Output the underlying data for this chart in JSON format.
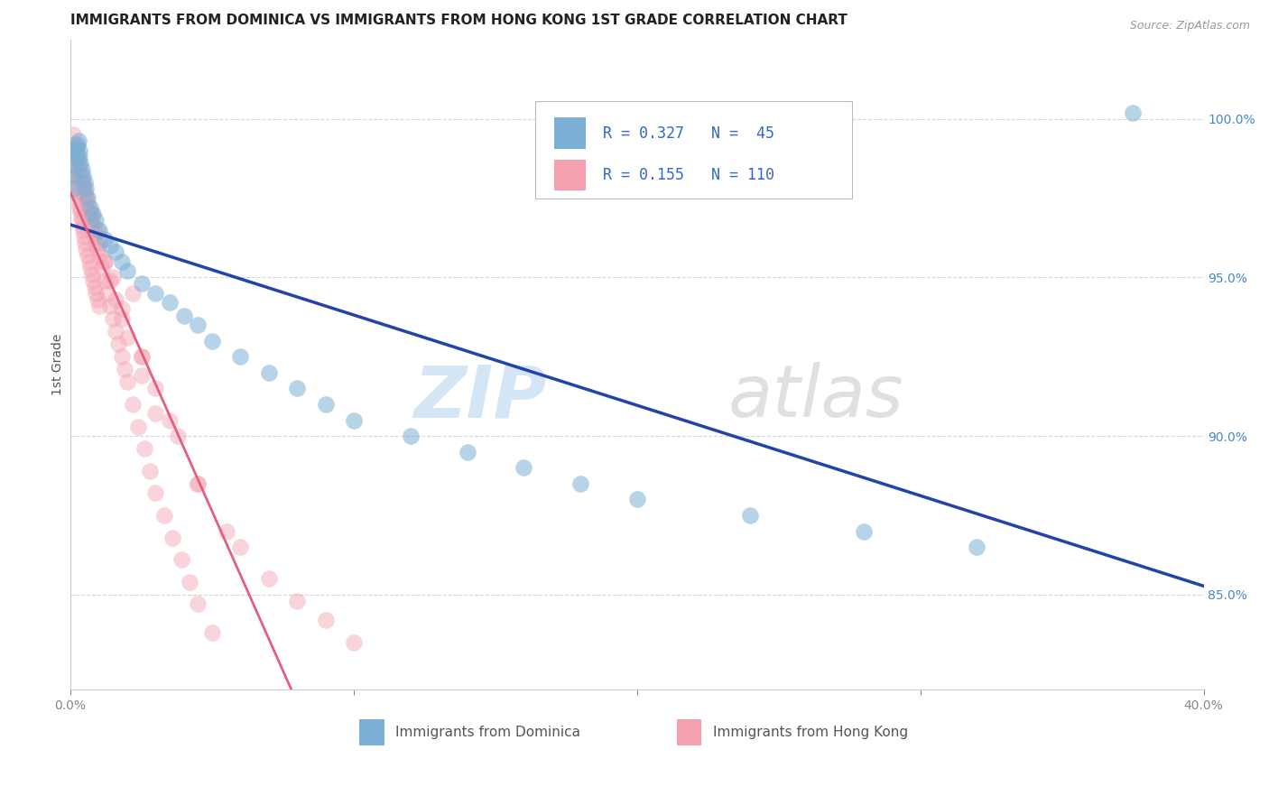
{
  "title": "IMMIGRANTS FROM DOMINICA VS IMMIGRANTS FROM HONG KONG 1ST GRADE CORRELATION CHART",
  "source_text": "Source: ZipAtlas.com",
  "ylabel": "1st Grade",
  "x_label_dominica": "Immigrants from Dominica",
  "x_label_hongkong": "Immigrants from Hong Kong",
  "xlim": [
    0.0,
    40.0
  ],
  "ylim": [
    82.0,
    102.5
  ],
  "y_ticks": [
    85.0,
    90.0,
    95.0,
    100.0
  ],
  "y_tick_labels": [
    "85.0%",
    "90.0%",
    "95.0%",
    "100.0%"
  ],
  "dominica_R": 0.327,
  "dominica_N": 45,
  "hongkong_R": 0.155,
  "hongkong_N": 110,
  "dominica_color": "#7BAFD4",
  "hongkong_color": "#F4A0B0",
  "dominica_line_color": "#2244AA",
  "hongkong_line_color": "#E06080",
  "background_color": "#FFFFFF",
  "grid_color": "#CCCCCC",
  "watermark_color": "#B8D4E8",
  "title_fontsize": 11,
  "dominica_x": [
    0.08,
    0.12,
    0.15,
    0.18,
    0.2,
    0.22,
    0.25,
    0.28,
    0.3,
    0.33,
    0.35,
    0.4,
    0.45,
    0.5,
    0.55,
    0.6,
    0.7,
    0.8,
    0.9,
    1.0,
    1.2,
    1.4,
    1.6,
    1.8,
    2.0,
    2.5,
    3.0,
    3.5,
    4.0,
    4.5,
    5.0,
    6.0,
    7.0,
    8.0,
    9.0,
    10.0,
    12.0,
    14.0,
    16.0,
    18.0,
    20.0,
    24.0,
    28.0,
    32.0,
    37.5
  ],
  "dominica_y": [
    97.8,
    98.2,
    98.5,
    98.8,
    99.0,
    99.1,
    99.2,
    99.3,
    99.0,
    98.8,
    98.6,
    98.4,
    98.2,
    98.0,
    97.8,
    97.5,
    97.2,
    97.0,
    96.8,
    96.5,
    96.2,
    96.0,
    95.8,
    95.5,
    95.2,
    94.8,
    94.5,
    94.2,
    93.8,
    93.5,
    93.0,
    92.5,
    92.0,
    91.5,
    91.0,
    90.5,
    90.0,
    89.5,
    89.0,
    88.5,
    88.0,
    87.5,
    87.0,
    86.5,
    100.2
  ],
  "hongkong_x": [
    0.05,
    0.08,
    0.1,
    0.12,
    0.14,
    0.16,
    0.18,
    0.2,
    0.22,
    0.25,
    0.28,
    0.3,
    0.33,
    0.35,
    0.38,
    0.4,
    0.43,
    0.45,
    0.48,
    0.5,
    0.55,
    0.6,
    0.65,
    0.7,
    0.75,
    0.8,
    0.85,
    0.9,
    0.95,
    1.0,
    0.1,
    0.15,
    0.2,
    0.25,
    0.3,
    0.35,
    0.4,
    0.45,
    0.5,
    0.55,
    0.6,
    0.65,
    0.7,
    0.75,
    0.8,
    0.85,
    0.9,
    0.95,
    1.0,
    1.1,
    1.2,
    1.3,
    1.4,
    1.5,
    1.6,
    1.7,
    1.8,
    1.9,
    2.0,
    2.2,
    2.4,
    2.6,
    2.8,
    3.0,
    3.3,
    3.6,
    3.9,
    4.2,
    4.5,
    5.0,
    0.2,
    0.3,
    0.4,
    0.5,
    0.6,
    0.7,
    0.8,
    0.9,
    1.0,
    1.2,
    1.4,
    1.6,
    1.8,
    2.0,
    2.5,
    3.0,
    0.35,
    0.55,
    0.75,
    0.95,
    1.5,
    2.5,
    3.5,
    4.5,
    5.5,
    6.0,
    7.0,
    8.0,
    9.0,
    10.0,
    1.2,
    1.8,
    2.5,
    3.0,
    3.8,
    4.5,
    0.25,
    0.45,
    0.65,
    2.2
  ],
  "hongkong_y": [
    99.2,
    99.0,
    98.8,
    98.7,
    98.5,
    98.3,
    98.2,
    98.0,
    97.9,
    97.7,
    97.6,
    97.4,
    97.2,
    97.1,
    96.9,
    96.8,
    96.6,
    96.5,
    96.3,
    96.1,
    95.9,
    95.7,
    95.5,
    95.3,
    95.1,
    94.9,
    94.7,
    94.5,
    94.3,
    94.1,
    99.5,
    99.2,
    99.0,
    98.8,
    98.5,
    98.3,
    98.1,
    97.9,
    97.7,
    97.5,
    97.3,
    97.1,
    96.9,
    96.7,
    96.5,
    96.3,
    96.1,
    95.9,
    95.7,
    95.3,
    94.9,
    94.5,
    94.1,
    93.7,
    93.3,
    92.9,
    92.5,
    92.1,
    91.7,
    91.0,
    90.3,
    89.6,
    88.9,
    88.2,
    87.5,
    86.8,
    86.1,
    85.4,
    84.7,
    83.8,
    98.5,
    98.2,
    97.9,
    97.6,
    97.3,
    97.0,
    96.7,
    96.4,
    96.1,
    95.5,
    94.9,
    94.3,
    93.7,
    93.1,
    91.9,
    90.7,
    98.0,
    97.5,
    97.0,
    96.5,
    95.0,
    92.5,
    90.5,
    88.5,
    87.0,
    86.5,
    85.5,
    84.8,
    84.2,
    83.5,
    95.5,
    94.0,
    92.5,
    91.5,
    90.0,
    88.5,
    98.8,
    97.8,
    96.8,
    94.5
  ]
}
